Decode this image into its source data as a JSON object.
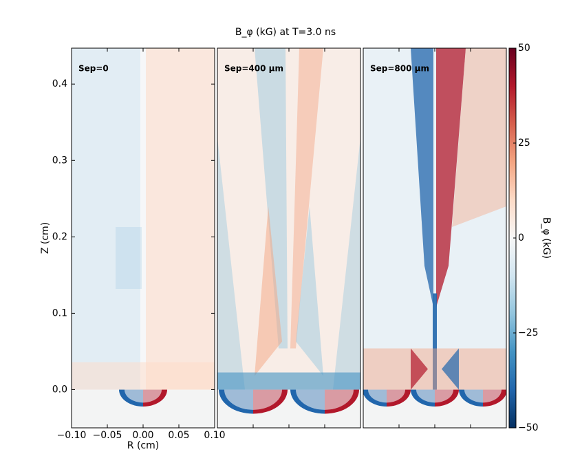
{
  "chart_data": {
    "type": "heatmap",
    "title": "B_φ (kG) at T=3.0 ns",
    "x_label": "R (cm)",
    "y_label": "Z (cm)",
    "panels": [
      "Sep=0",
      "Sep=400 μm",
      "Sep=800 μm"
    ],
    "xlim": [
      -0.1,
      0.1
    ],
    "xticks": [
      {
        "value": -0.1,
        "label": "−0.10"
      },
      {
        "value": -0.05,
        "label": "−0.05"
      },
      {
        "value": 0,
        "label": "0.00"
      },
      {
        "value": 0.05,
        "label": "0.05"
      },
      {
        "value": 0.1,
        "label": "0.10"
      }
    ],
    "ylim": [
      -0.05,
      0.447
    ],
    "yticks": [
      {
        "value": 0,
        "label": "0.0"
      },
      0.1,
      0.2,
      0.3,
      0.4
    ],
    "colorbar_label": "B_φ (kG)",
    "clim": [
      -50,
      50
    ],
    "cticks": [
      {
        "value": -50,
        "label": "−50"
      },
      {
        "value": -25,
        "label": "−25"
      },
      0,
      25,
      50
    ],
    "colormap": [
      "#053061",
      "#2166ac",
      "#4393c3",
      "#92c5de",
      "#d1e5f0",
      "#f7f7f7",
      "#fddbc7",
      "#f4a582",
      "#d6604d",
      "#b2182b",
      "#67001f"
    ]
  }
}
